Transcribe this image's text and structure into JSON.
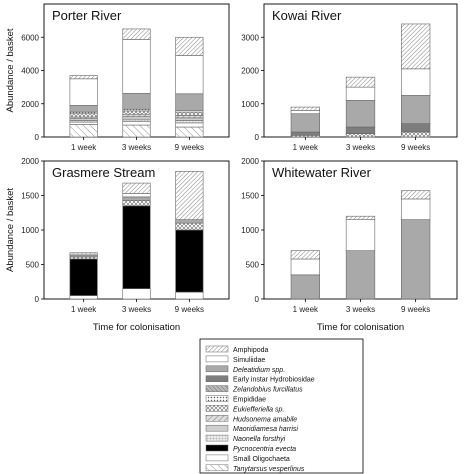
{
  "chart_data": [
    {
      "type": "bar",
      "title": "Porter River",
      "categories": [
        "1 week",
        "3 weeks",
        "9 weeks"
      ],
      "ylim": [
        0,
        8000
      ],
      "yticks": [
        0,
        2000,
        4000,
        6000
      ],
      "ylabel": "Abundance / basket",
      "xlabel": "",
      "stacked": true,
      "series": [
        {
          "name": "Tanytarsus vesperlinus",
          "values": [
            750,
            720,
            600
          ]
        },
        {
          "name": "Small Oligochaeta",
          "values": [
            150,
            200,
            250
          ]
        },
        {
          "name": "Pycnocentria evecta",
          "values": [
            0,
            0,
            0
          ]
        },
        {
          "name": "Naonella forsthyi",
          "values": [
            100,
            150,
            150
          ]
        },
        {
          "name": "Maoridiamesa harrisi",
          "values": [
            100,
            150,
            150
          ]
        },
        {
          "name": "Hudsonema amabile",
          "values": [
            100,
            150,
            150
          ]
        },
        {
          "name": "Eukiefferiella sp.",
          "values": [
            200,
            200,
            200
          ]
        },
        {
          "name": "Empididae",
          "values": [
            100,
            100,
            100
          ]
        },
        {
          "name": "Zelandobius furcillatus",
          "values": [
            0,
            0,
            0
          ]
        },
        {
          "name": "Early instar Hydrobiosidae",
          "values": [
            0,
            0,
            0
          ]
        },
        {
          "name": "Deleatidium spp.",
          "values": [
            400,
            950,
            1000
          ]
        },
        {
          "name": "Simuliidae",
          "values": [
            1600,
            3250,
            2300
          ]
        },
        {
          "name": "Amphipoda",
          "values": [
            200,
            630,
            1100
          ]
        }
      ]
    },
    {
      "type": "bar",
      "title": "Kowai River",
      "categories": [
        "1 week",
        "3 weeks",
        "9 weeks"
      ],
      "ylim": [
        0,
        4000
      ],
      "yticks": [
        0,
        1000,
        2000,
        3000
      ],
      "ylabel": "",
      "xlabel": "",
      "stacked": true,
      "series": [
        {
          "name": "Tanytarsus vesperlinus",
          "values": [
            0,
            0,
            0
          ]
        },
        {
          "name": "Small Oligochaeta",
          "values": [
            0,
            0,
            0
          ]
        },
        {
          "name": "Pycnocentria evecta",
          "values": [
            0,
            0,
            0
          ]
        },
        {
          "name": "Naonella forsthyi",
          "values": [
            0,
            0,
            0
          ]
        },
        {
          "name": "Maoridiamesa harrisi",
          "values": [
            0,
            0,
            0
          ]
        },
        {
          "name": "Hudsonema amabile",
          "values": [
            0,
            0,
            0
          ]
        },
        {
          "name": "Eukiefferiella sp.",
          "values": [
            50,
            100,
            150
          ]
        },
        {
          "name": "Empididae",
          "values": [
            0,
            0,
            0
          ]
        },
        {
          "name": "Zelandobius furcillatus",
          "values": [
            0,
            0,
            0
          ]
        },
        {
          "name": "Early instar Hydrobiosidae",
          "values": [
            100,
            200,
            250
          ]
        },
        {
          "name": "Deleatidium spp.",
          "values": [
            550,
            800,
            850
          ]
        },
        {
          "name": "Simuliidae",
          "values": [
            100,
            400,
            800
          ]
        },
        {
          "name": "Amphipoda",
          "values": [
            100,
            300,
            1350
          ]
        }
      ]
    },
    {
      "type": "bar",
      "title": "Grasmere Stream",
      "categories": [
        "1 week",
        "3 weeks",
        "9 weeks"
      ],
      "ylim": [
        0,
        2000
      ],
      "yticks": [
        0,
        500,
        1000,
        1500,
        2000
      ],
      "ylabel": "Abundance / basket",
      "xlabel": "Time for colonisation",
      "stacked": true,
      "series": [
        {
          "name": "Tanytarsus vesperlinus",
          "values": [
            0,
            0,
            0
          ]
        },
        {
          "name": "Small Oligochaeta",
          "values": [
            50,
            150,
            100
          ]
        },
        {
          "name": "Pycnocentria evecta",
          "values": [
            530,
            1200,
            900
          ]
        },
        {
          "name": "Naonella forsthyi",
          "values": [
            0,
            0,
            0
          ]
        },
        {
          "name": "Maoridiamesa harrisi",
          "values": [
            0,
            0,
            0
          ]
        },
        {
          "name": "Hudsonema amabile",
          "values": [
            0,
            0,
            0
          ]
        },
        {
          "name": "Eukiefferiella sp.",
          "values": [
            30,
            80,
            100
          ]
        },
        {
          "name": "Empididae",
          "values": [
            0,
            0,
            0
          ]
        },
        {
          "name": "Zelandobius furcillatus",
          "values": [
            0,
            0,
            0
          ]
        },
        {
          "name": "Early instar Hydrobiosidae",
          "values": [
            0,
            0,
            0
          ]
        },
        {
          "name": "Deleatidium spp.",
          "values": [
            20,
            50,
            50
          ]
        },
        {
          "name": "Simuliidae",
          "values": [
            20,
            50,
            0
          ]
        },
        {
          "name": "Amphipoda",
          "values": [
            20,
            150,
            700
          ]
        }
      ]
    },
    {
      "type": "bar",
      "title": "Whitewater River",
      "categories": [
        "1 week",
        "3 weeks",
        "9 weeks"
      ],
      "ylim": [
        0,
        2000
      ],
      "yticks": [
        0,
        500,
        1000,
        1500,
        2000
      ],
      "ylabel": "",
      "xlabel": "Time for colonisation",
      "stacked": true,
      "series": [
        {
          "name": "Tanytarsus vesperlinus",
          "values": [
            0,
            0,
            0
          ]
        },
        {
          "name": "Small Oligochaeta",
          "values": [
            0,
            0,
            0
          ]
        },
        {
          "name": "Pycnocentria evecta",
          "values": [
            0,
            0,
            0
          ]
        },
        {
          "name": "Naonella forsthyi",
          "values": [
            0,
            0,
            0
          ]
        },
        {
          "name": "Maoridiamesa harrisi",
          "values": [
            0,
            0,
            0
          ]
        },
        {
          "name": "Hudsonema amabile",
          "values": [
            0,
            0,
            0
          ]
        },
        {
          "name": "Eukiefferiella sp.",
          "values": [
            0,
            0,
            0
          ]
        },
        {
          "name": "Empididae",
          "values": [
            0,
            0,
            0
          ]
        },
        {
          "name": "Zelandobius furcillatus",
          "values": [
            0,
            0,
            0
          ]
        },
        {
          "name": "Early instar Hydrobiosidae",
          "values": [
            0,
            0,
            0
          ]
        },
        {
          "name": "Deleatidium spp.",
          "values": [
            350,
            700,
            1150
          ]
        },
        {
          "name": "Simuliidae",
          "values": [
            230,
            450,
            300
          ]
        },
        {
          "name": "Amphipoda",
          "values": [
            120,
            50,
            120
          ]
        }
      ]
    }
  ],
  "legend": {
    "items": [
      {
        "label": "Amphipoda",
        "italic": false,
        "pattern": "diagFine"
      },
      {
        "label": "Simuliidae",
        "italic": false,
        "pattern": "white"
      },
      {
        "label": "Deleatidium spp.",
        "italic": true,
        "pattern": "gray"
      },
      {
        "label": "Early instar Hydrobiosidae",
        "italic": false,
        "pattern": "darkgray"
      },
      {
        "label": "Zelandobius furcillatus",
        "italic": true,
        "pattern": "hatch"
      },
      {
        "label": "Empididae",
        "italic": false,
        "pattern": "dots"
      },
      {
        "label": "Eukiefferiella sp.",
        "italic": true,
        "pattern": "cross"
      },
      {
        "label": "Hudsonema amabile",
        "italic": true,
        "pattern": "hatch2"
      },
      {
        "label": "Maoridiamesa harrisi",
        "italic": true,
        "pattern": "lightgray"
      },
      {
        "label": "Naonella forsthyi",
        "italic": true,
        "pattern": "grid"
      },
      {
        "label": "Pycnocentria evecta",
        "italic": true,
        "pattern": "black"
      },
      {
        "label": "Small Oligochaeta",
        "italic": false,
        "pattern": "white"
      },
      {
        "label": "Tanytarsus vesperlinus",
        "italic": true,
        "pattern": "diagWide"
      }
    ]
  },
  "colors": {
    "bar_outline": "#666666",
    "gray": "#a9a9a9",
    "darkgray": "#7d7d7d",
    "lightgray": "#cfcfcf",
    "black": "#000000"
  }
}
